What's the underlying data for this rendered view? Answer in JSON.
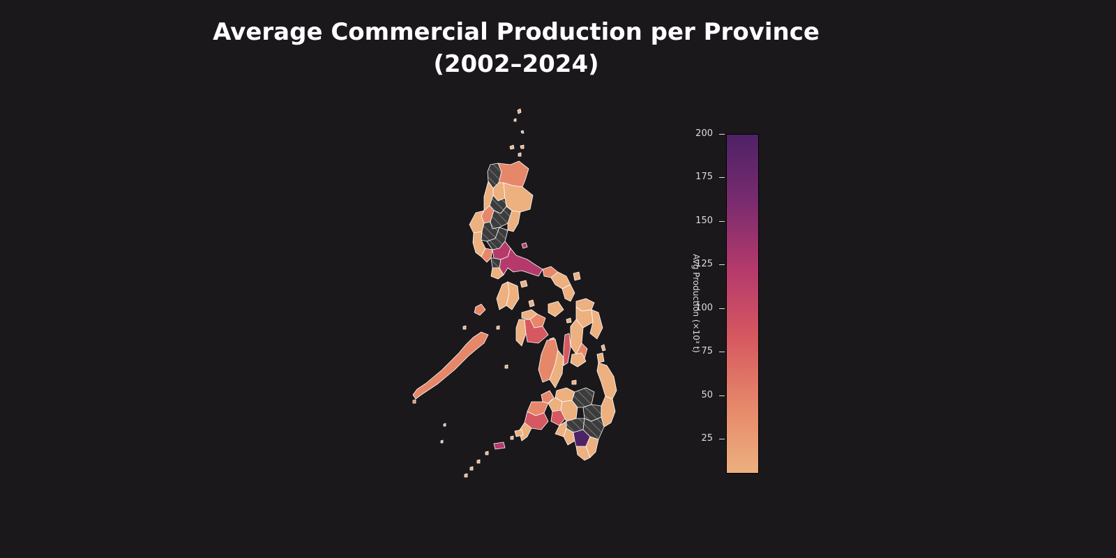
{
  "title": {
    "line1": "Average Commercial Production per Province",
    "line2": "(2002–2024)"
  },
  "colorbar": {
    "label": "Avg Production (×10³ t)",
    "ticks": [
      "25",
      "50",
      "75",
      "100",
      "125",
      "150",
      "175",
      "200"
    ],
    "range": [
      5,
      200
    ],
    "colormap": "flare-reversed",
    "colors": {
      "low": "#edb07f",
      "mid_low": "#e6876a",
      "mid": "#d65860",
      "mid_high": "#b53a6b",
      "high": "#7a2b6f",
      "max": "#4e2266"
    }
  },
  "map": {
    "region": "Philippines",
    "no_data_style": "hatched dark grey",
    "no_data_color": "#3c3c3c",
    "border_color": "#ffffff",
    "background": "#1a181b"
  }
}
